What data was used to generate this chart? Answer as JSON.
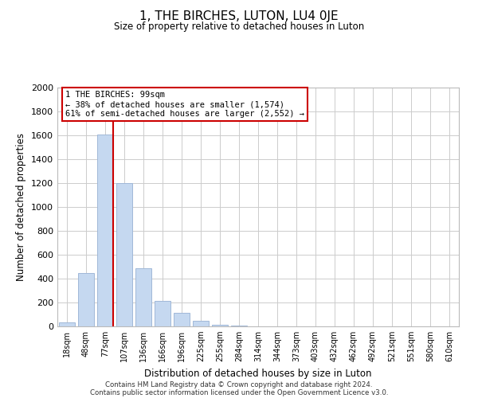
{
  "title": "1, THE BIRCHES, LUTON, LU4 0JE",
  "subtitle": "Size of property relative to detached houses in Luton",
  "xlabel": "Distribution of detached houses by size in Luton",
  "ylabel": "Number of detached properties",
  "categories": [
    "18sqm",
    "48sqm",
    "77sqm",
    "107sqm",
    "136sqm",
    "166sqm",
    "196sqm",
    "225sqm",
    "255sqm",
    "284sqm",
    "314sqm",
    "344sqm",
    "373sqm",
    "403sqm",
    "432sqm",
    "462sqm",
    "492sqm",
    "521sqm",
    "551sqm",
    "580sqm",
    "610sqm"
  ],
  "values": [
    35,
    450,
    1610,
    1200,
    490,
    215,
    115,
    45,
    15,
    5,
    0,
    0,
    0,
    0,
    0,
    0,
    0,
    0,
    0,
    0,
    0
  ],
  "bar_color": "#c5d8f0",
  "bar_edge_color": "#a0b8d8",
  "marker_line_color": "#cc0000",
  "annotation_text": "1 THE BIRCHES: 99sqm\n← 38% of detached houses are smaller (1,574)\n61% of semi-detached houses are larger (2,552) →",
  "annotation_box_color": "#ffffff",
  "annotation_box_edge": "#cc0000",
  "ylim": [
    0,
    2000
  ],
  "yticks": [
    0,
    200,
    400,
    600,
    800,
    1000,
    1200,
    1400,
    1600,
    1800,
    2000
  ],
  "footer_line1": "Contains HM Land Registry data © Crown copyright and database right 2024.",
  "footer_line2": "Contains public sector information licensed under the Open Government Licence v3.0.",
  "background_color": "#ffffff",
  "grid_color": "#cccccc"
}
